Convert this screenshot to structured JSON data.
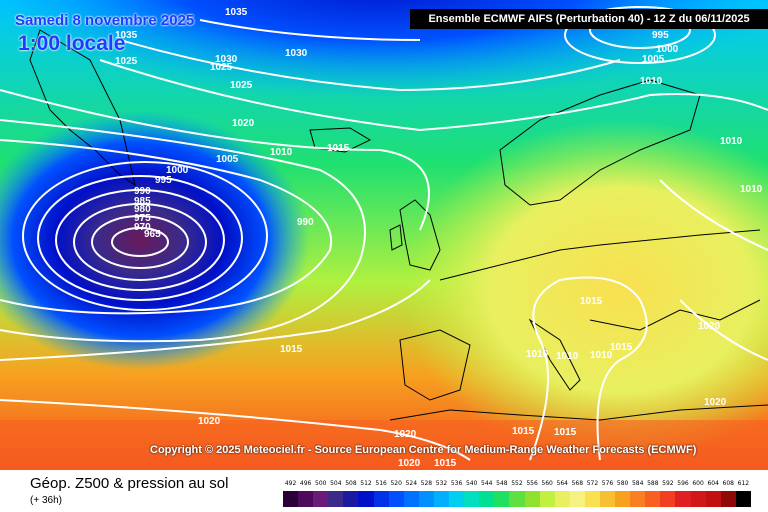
{
  "header": {
    "title": "Ensemble ECMWF AIFS  (Perturbation 40)  -  12 Z du 06/11/2025",
    "date": "Samedi 8 novembre 2025",
    "local_time": "1:00 locale"
  },
  "copyright": "Copyright © 2025 Meteociel.fr - Source European Centre for Medium-Range Weather Forecasts (ECMWF)",
  "footer": {
    "title": "Géop. Z500 & pression au sol",
    "subtitle": "(+ 36h)"
  },
  "scale": {
    "values": [
      "492",
      "496",
      "500",
      "504",
      "508",
      "512",
      "516",
      "520",
      "524",
      "528",
      "532",
      "536",
      "540",
      "544",
      "548",
      "552",
      "556",
      "560",
      "564",
      "568",
      "572",
      "576",
      "580",
      "584",
      "588",
      "592",
      "596",
      "600",
      "604",
      "608",
      "612"
    ],
    "colors": [
      "#2a0038",
      "#4b0a5a",
      "#6a1a7a",
      "#3a2a8a",
      "#1a1aa0",
      "#0010c8",
      "#0030e8",
      "#0050ff",
      "#0070ff",
      "#0090ff",
      "#00b0ff",
      "#00d0f0",
      "#00e0c0",
      "#00e090",
      "#20e060",
      "#60e040",
      "#90e030",
      "#c0f040",
      "#e8f060",
      "#f8f080",
      "#f8e050",
      "#f8c030",
      "#f8a020",
      "#f88020",
      "#f86020",
      "#f04020",
      "#e02020",
      "#d01818",
      "#c01010",
      "#900808",
      "#000000"
    ]
  },
  "isobars": [
    {
      "label": "1035"
    },
    {
      "label": "1035"
    },
    {
      "label": "1025"
    },
    {
      "label": "1030"
    },
    {
      "label": "1025"
    },
    {
      "label": "1030"
    },
    {
      "label": "1025"
    },
    {
      "label": "1020"
    },
    {
      "label": "1010"
    },
    {
      "label": "1015"
    },
    {
      "label": "1005"
    },
    {
      "label": "1000"
    },
    {
      "label": "995"
    },
    {
      "label": "990"
    },
    {
      "label": "985"
    },
    {
      "label": "980"
    },
    {
      "label": "975"
    },
    {
      "label": "970"
    },
    {
      "label": "965"
    },
    {
      "label": "990"
    },
    {
      "label": "1015"
    },
    {
      "label": "1020"
    },
    {
      "label": "995"
    },
    {
      "label": "1000"
    },
    {
      "label": "1005"
    },
    {
      "label": "1010"
    },
    {
      "label": "1010"
    },
    {
      "label": "1010"
    },
    {
      "label": "1015"
    },
    {
      "label": "1020"
    },
    {
      "label": "1010"
    },
    {
      "label": "1010"
    },
    {
      "label": "1010"
    },
    {
      "label": "1015"
    },
    {
      "label": "1020"
    },
    {
      "label": "1020"
    },
    {
      "label": "1015"
    },
    {
      "label": "1015"
    },
    {
      "label": "1020"
    },
    {
      "label": "1015"
    }
  ]
}
